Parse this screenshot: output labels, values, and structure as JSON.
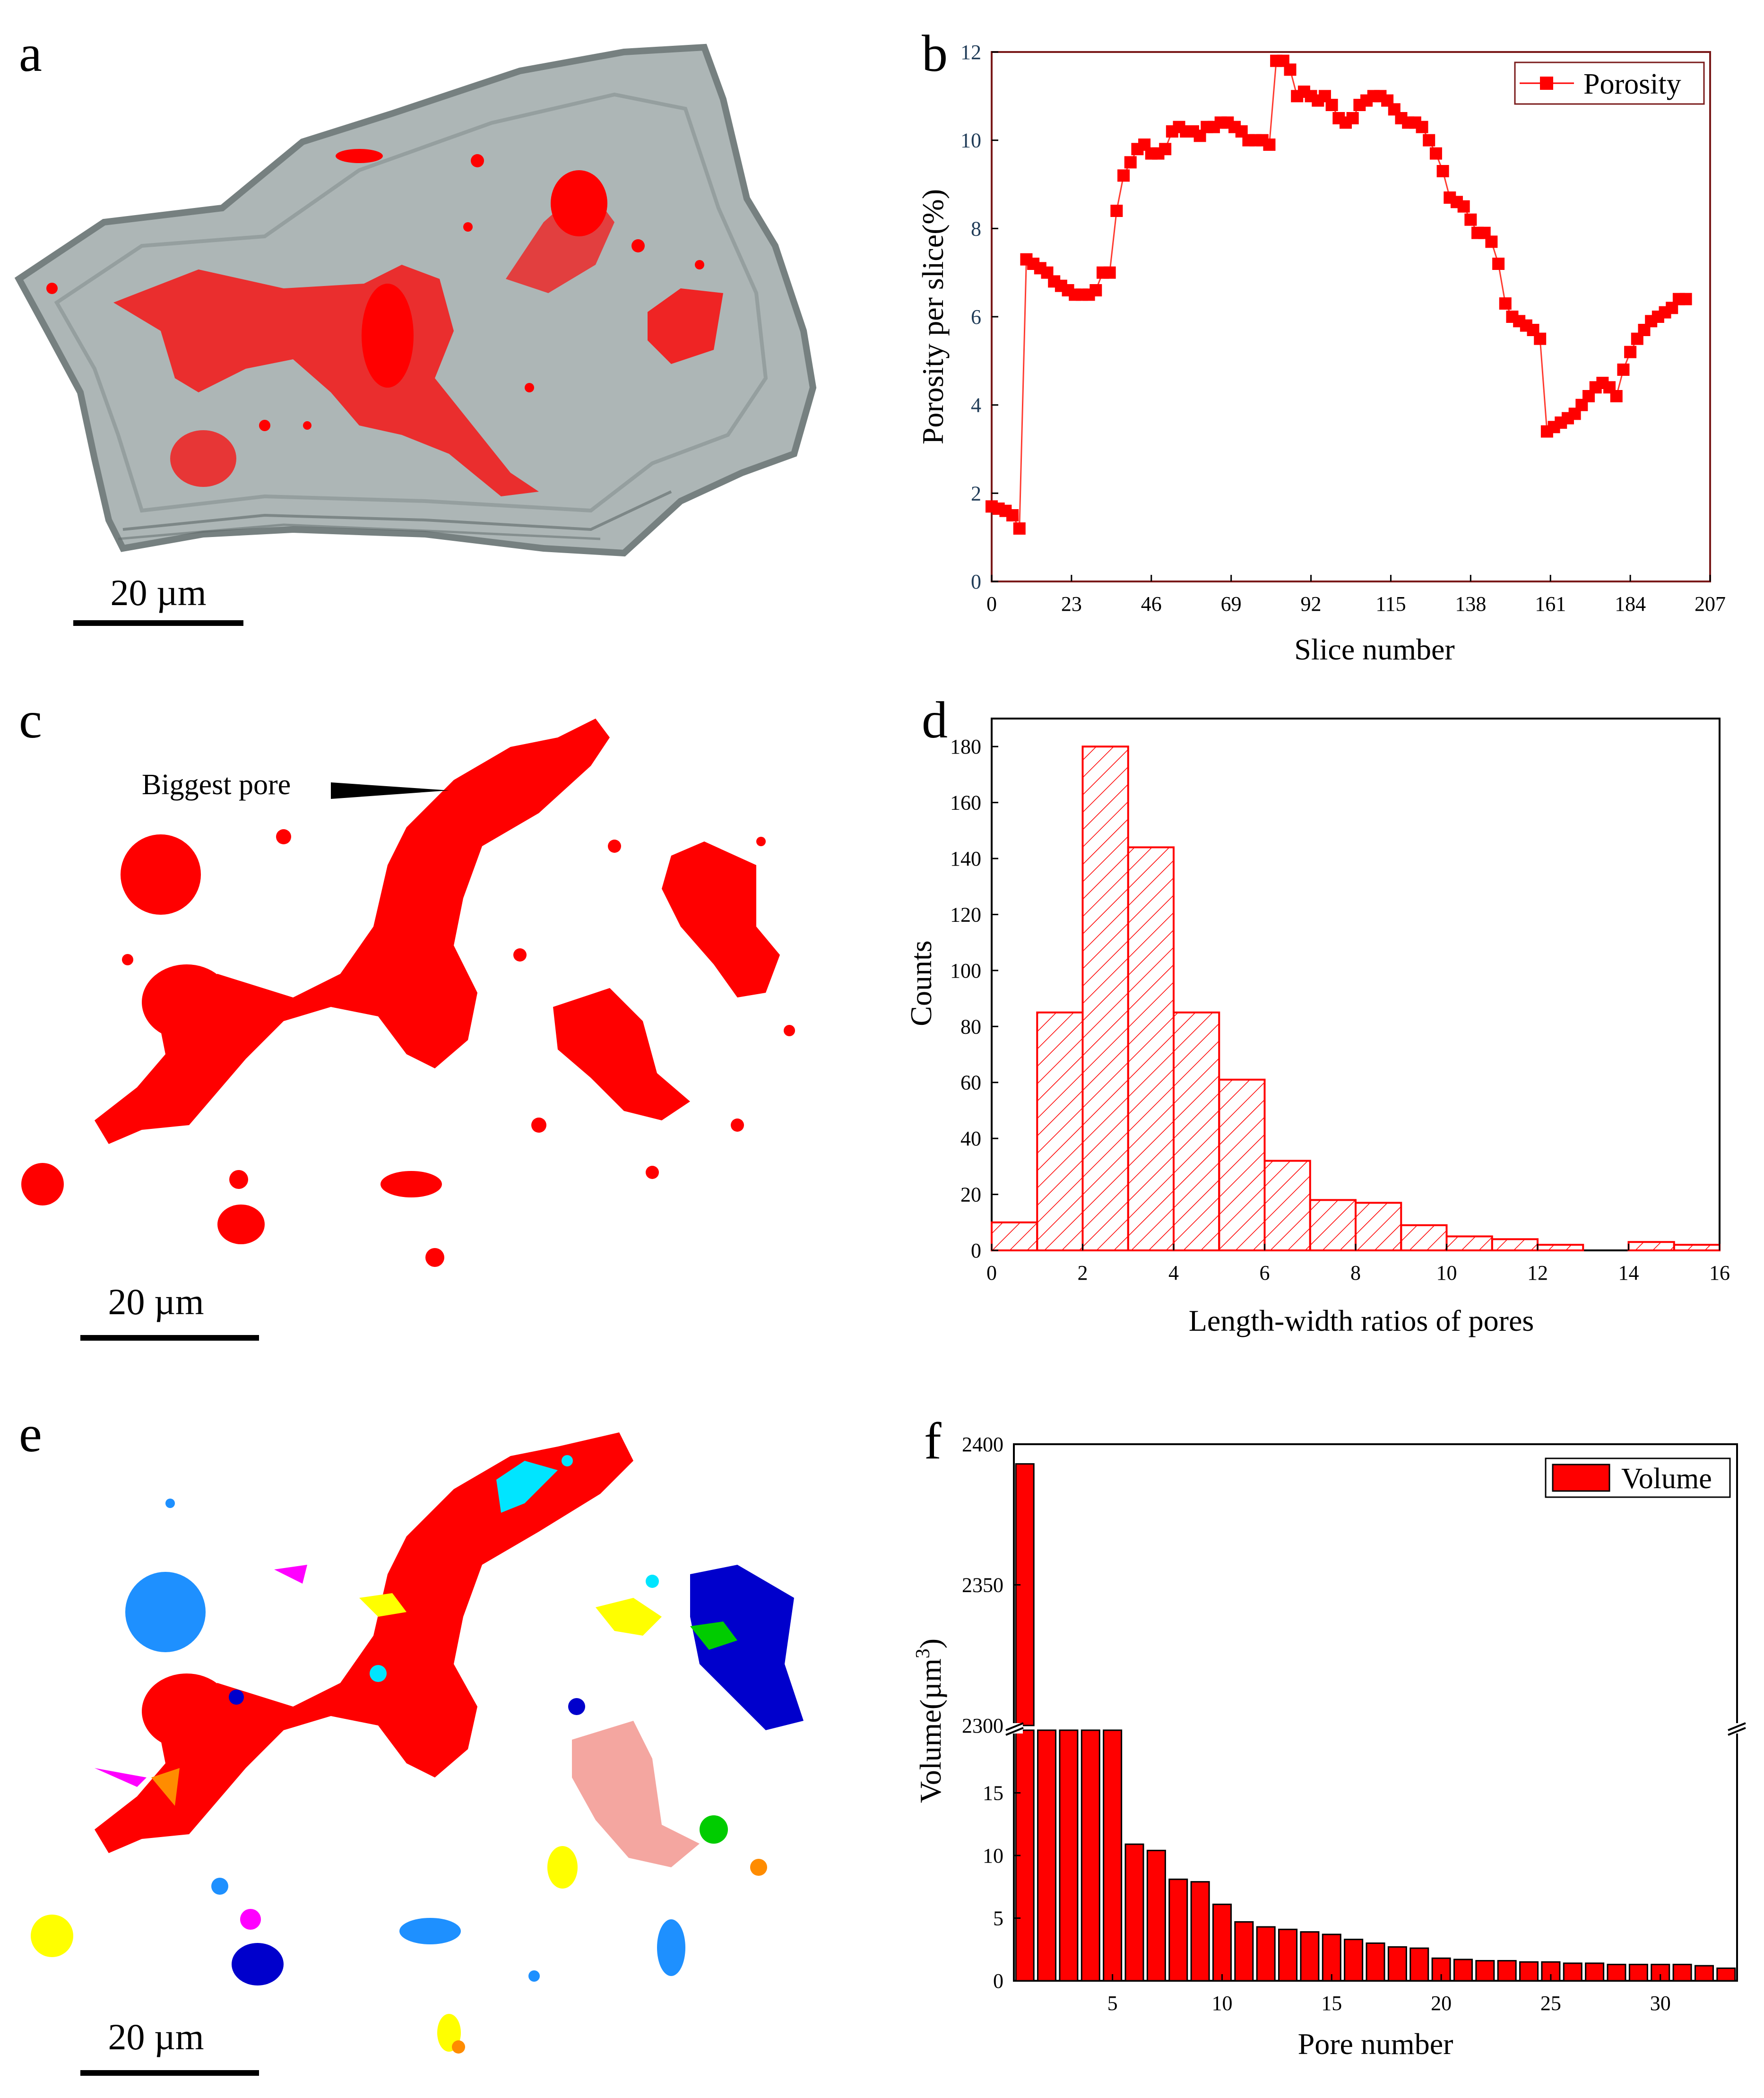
{
  "panels": {
    "a": {
      "letter": "a",
      "scale_label": "20 µm"
    },
    "c": {
      "letter": "c",
      "scale_label": "20 µm",
      "annotation": "Biggest pore"
    },
    "e": {
      "letter": "e",
      "scale_label": "20 µm"
    }
  },
  "colors": {
    "red": "#ff0000",
    "grey_rock": "#a9b3b3",
    "grey_edge": "#6f7a7a",
    "pore_colors": [
      "#1e90ff",
      "#ff00ff",
      "#ffff00",
      "#00e5ff",
      "#0000cc",
      "#00cc00",
      "#ff8c00",
      "#f4a6a0"
    ]
  },
  "chart_data": [
    {
      "id": "b",
      "letter": "b",
      "type": "line",
      "xlabel": "Slice number",
      "ylabel": "Porosity per slice(%)",
      "xlim": [
        0,
        207
      ],
      "ylim": [
        0,
        12
      ],
      "xticks": [
        0,
        23,
        46,
        69,
        92,
        115,
        138,
        161,
        184,
        207
      ],
      "yticks": [
        0,
        2,
        4,
        6,
        8,
        10,
        12
      ],
      "series": [
        {
          "name": "Porosity",
          "x": [
            0,
            2,
            4,
            6,
            8,
            10,
            12,
            14,
            16,
            18,
            20,
            22,
            24,
            26,
            28,
            30,
            32,
            34,
            36,
            38,
            40,
            42,
            44,
            46,
            48,
            50,
            52,
            54,
            56,
            58,
            60,
            62,
            64,
            66,
            68,
            70,
            72,
            74,
            76,
            78,
            80,
            82,
            84,
            86,
            88,
            90,
            92,
            94,
            96,
            98,
            100,
            102,
            104,
            106,
            108,
            110,
            112,
            114,
            116,
            118,
            120,
            122,
            124,
            126,
            128,
            130,
            132,
            134,
            136,
            138,
            140,
            142,
            144,
            146,
            148,
            150,
            152,
            154,
            156,
            158,
            160,
            162,
            164,
            166,
            168,
            170,
            172,
            174,
            176,
            178,
            180,
            182,
            184,
            186,
            188,
            190,
            192,
            194,
            196,
            198,
            200
          ],
          "y": [
            1.7,
            1.65,
            1.6,
            1.5,
            1.2,
            7.3,
            7.2,
            7.1,
            7.0,
            6.8,
            6.7,
            6.6,
            6.5,
            6.5,
            6.5,
            6.6,
            7.0,
            7.0,
            8.4,
            9.2,
            9.5,
            9.8,
            9.9,
            9.7,
            9.7,
            9.8,
            10.2,
            10.3,
            10.2,
            10.2,
            10.1,
            10.3,
            10.3,
            10.4,
            10.4,
            10.3,
            10.2,
            10.0,
            10.0,
            10.0,
            9.9,
            11.8,
            11.8,
            11.6,
            11.0,
            11.1,
            11.0,
            10.9,
            11.0,
            10.8,
            10.5,
            10.4,
            10.5,
            10.8,
            10.9,
            11.0,
            11.0,
            10.9,
            10.7,
            10.5,
            10.4,
            10.4,
            10.3,
            10.0,
            9.7,
            9.3,
            8.7,
            8.6,
            8.5,
            8.2,
            7.9,
            7.9,
            7.7,
            7.2,
            6.3,
            6.0,
            5.9,
            5.8,
            5.7,
            5.5,
            3.4,
            3.5,
            3.6,
            3.7,
            3.8,
            4.0,
            4.2,
            4.4,
            4.5,
            4.4,
            4.2,
            4.8,
            5.2,
            5.5,
            5.7,
            5.9,
            6.0,
            6.1,
            6.2,
            6.4,
            6.4
          ]
        }
      ],
      "legend": "top-right"
    },
    {
      "id": "d",
      "letter": "d",
      "type": "bar",
      "xlabel": "Length-width ratios of pores",
      "ylabel": "Counts",
      "xlim": [
        0,
        16
      ],
      "ylim": [
        0,
        190
      ],
      "xticks": [
        0,
        2,
        4,
        6,
        8,
        10,
        12,
        14,
        16
      ],
      "yticks": [
        0,
        20,
        40,
        60,
        80,
        100,
        120,
        140,
        160,
        180
      ],
      "bin_edges": [
        0,
        1,
        2,
        3,
        4,
        5,
        6,
        7,
        8,
        9,
        10,
        11,
        12,
        13,
        14,
        15,
        16
      ],
      "values": [
        10,
        85,
        180,
        144,
        85,
        61,
        32,
        18,
        17,
        9,
        5,
        4,
        2,
        0,
        3,
        2
      ]
    },
    {
      "id": "f",
      "letter": "f",
      "type": "bar",
      "xlabel": "Pore number",
      "ylabel": "Volume(µm³)",
      "ylabel_main": "Volume(µm",
      "ylabel_sup": "3",
      "ylabel_end": ")",
      "xlim": [
        0.5,
        33.5
      ],
      "xticks": [
        5,
        10,
        15,
        20,
        25,
        30
      ],
      "ylim_lower": [
        0,
        20
      ],
      "yticks_lower": [
        0,
        5,
        10,
        15
      ],
      "ylim_upper": [
        2300,
        2400
      ],
      "yticks_upper": [
        2300,
        2350,
        2400
      ],
      "axis_break": true,
      "series": [
        {
          "name": "Volume",
          "x": [
            1,
            2,
            3,
            4,
            5,
            6,
            7,
            8,
            9,
            10,
            11,
            12,
            13,
            14,
            15,
            16,
            17,
            18,
            19,
            20,
            21,
            22,
            23,
            24,
            25,
            26,
            27,
            28,
            29,
            30,
            31,
            32,
            33
          ],
          "values": [
            2393,
            20,
            20,
            20,
            20,
            10.9,
            10.4,
            8.1,
            7.9,
            6.1,
            4.7,
            4.3,
            4.1,
            3.9,
            3.7,
            3.3,
            3.0,
            2.7,
            2.6,
            1.8,
            1.7,
            1.6,
            1.6,
            1.5,
            1.5,
            1.4,
            1.4,
            1.3,
            1.3,
            1.3,
            1.3,
            1.2,
            1.0
          ]
        }
      ],
      "legend": "top-right"
    }
  ]
}
